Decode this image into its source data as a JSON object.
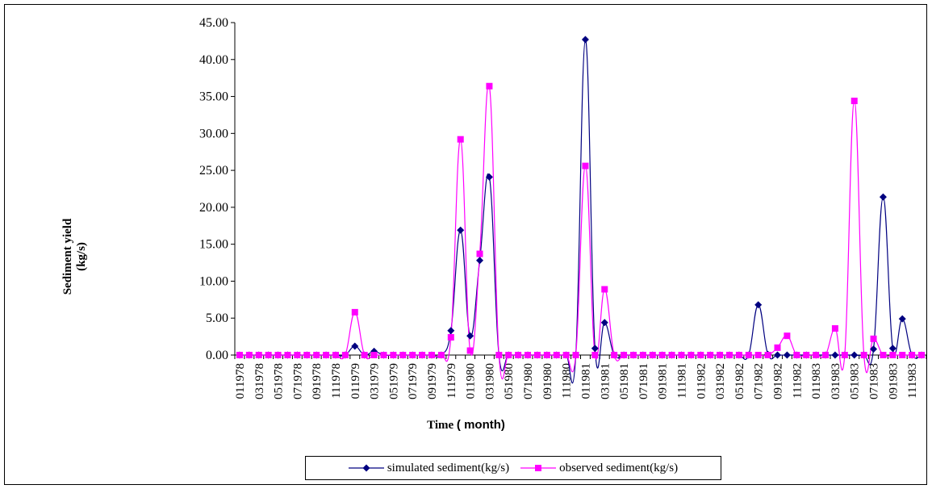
{
  "chart_data": {
    "type": "line",
    "xlabel": "Time",
    "xlabel_unit": "( month)",
    "ylabel": [
      "Sediment yield",
      "(kg/s)"
    ],
    "ylim": [
      0,
      45
    ],
    "yticks": [
      "0.00",
      "5.00",
      "10.00",
      "15.00",
      "20.00",
      "25.00",
      "30.00",
      "35.00",
      "40.00",
      "45.00"
    ],
    "grid": false,
    "legend_position": "bottom",
    "x": [
      "011978",
      "021978",
      "031978",
      "041978",
      "051978",
      "061978",
      "071978",
      "081978",
      "091978",
      "101978",
      "111978",
      "121978",
      "011979",
      "021979",
      "031979",
      "041979",
      "051979",
      "061979",
      "071979",
      "081979",
      "091979",
      "101979",
      "111979",
      "121979",
      "011980",
      "021980",
      "031980",
      "041980",
      "051980",
      "061980",
      "071980",
      "081980",
      "091980",
      "101980",
      "111980",
      "121980",
      "011981",
      "021981",
      "031981",
      "041981",
      "051981",
      "061981",
      "071981",
      "081981",
      "091981",
      "101981",
      "111981",
      "121981",
      "011982",
      "021982",
      "031982",
      "041982",
      "051982",
      "061982",
      "071982",
      "081982",
      "091982",
      "101982",
      "111982",
      "121982",
      "011983",
      "021983",
      "031983",
      "041983",
      "051983",
      "061983",
      "071983",
      "081983",
      "091983",
      "101983",
      "111983",
      "121983"
    ],
    "xtick_labels": [
      "011978",
      "031978",
      "051978",
      "071978",
      "091978",
      "111978",
      "011979",
      "031979",
      "051979",
      "071979",
      "091979",
      "111979",
      "011980",
      "031980",
      "051980",
      "071980",
      "091980",
      "111980",
      "011981",
      "031981",
      "051981",
      "071981",
      "091981",
      "111981",
      "011982",
      "031982",
      "051982",
      "071982",
      "091982",
      "111982",
      "011983",
      "031983",
      "051983",
      "071983",
      "091983",
      "111983"
    ],
    "series": [
      {
        "name": "simulated sediment(kg/s)",
        "color": "#000080",
        "marker": "diamond",
        "values": [
          0,
          0,
          0,
          0,
          0,
          0,
          0,
          0,
          0,
          0,
          0,
          0,
          1.2,
          0,
          0.5,
          0,
          0,
          0,
          0,
          0,
          0,
          0,
          3.3,
          16.9,
          2.6,
          12.8,
          24.1,
          0,
          0,
          0,
          0,
          0,
          0,
          0,
          0,
          0,
          42.7,
          0.9,
          4.4,
          0,
          0,
          0,
          0,
          0,
          0,
          0,
          0,
          0,
          0,
          0,
          0,
          0,
          0,
          0,
          6.8,
          0.1,
          0,
          0,
          0,
          0,
          0,
          0,
          0,
          0,
          0,
          0,
          0.8,
          21.4,
          0.9,
          4.9,
          0,
          0
        ]
      },
      {
        "name": "observed sediment(kg/s)",
        "color": "#FF00FF",
        "marker": "square",
        "values": [
          0,
          0,
          0,
          0,
          0,
          0,
          0,
          0,
          0,
          0,
          0,
          0,
          5.8,
          0,
          0,
          0,
          0,
          0,
          0,
          0,
          0,
          0,
          2.4,
          29.2,
          0.6,
          13.7,
          36.4,
          0,
          0,
          0,
          0,
          0,
          0,
          0,
          0,
          0,
          25.6,
          0,
          8.9,
          0,
          0,
          0,
          0,
          0,
          0,
          0,
          0,
          0,
          0,
          0,
          0,
          0,
          0,
          0,
          0,
          0,
          1.0,
          2.6,
          0,
          0,
          0,
          0,
          3.6,
          0,
          34.4,
          0,
          2.2,
          0,
          0,
          0,
          0,
          0
        ]
      }
    ]
  }
}
